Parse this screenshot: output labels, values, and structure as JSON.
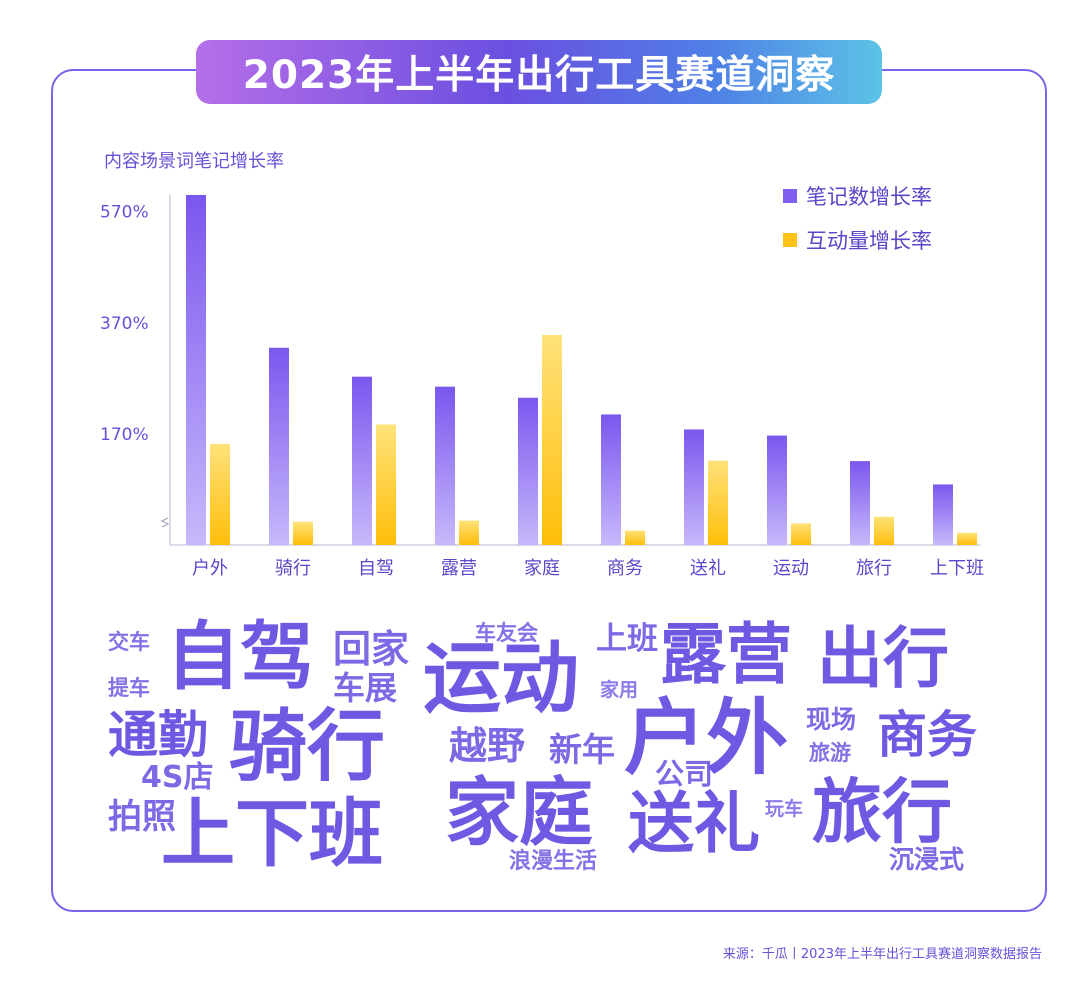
{
  "title": "2023年上半年出行工具赛道洞察",
  "source": "来源：千瓜丨2023年上半年出行工具赛道洞察数据报告",
  "colors": {
    "accent": "#7158e2",
    "bar_purple": "#7f5ff0",
    "bar_yellow": "#ffc21a"
  },
  "chart_data": {
    "type": "bar",
    "title": "2023年上半年出行工具赛道洞察",
    "ylabel": "内容场景词笔记增长率",
    "xlabel": "",
    "categories": [
      "户外",
      "骑行",
      "自驾",
      "露营",
      "家庭",
      "商务",
      "送礼",
      "运动",
      "旅行",
      "上下班"
    ],
    "y_ticks": [
      170,
      370,
      570
    ],
    "y_tick_labels": [
      "170%",
      "370%",
      "570%"
    ],
    "ylim": [
      -30,
      600
    ],
    "axis_break": true,
    "legend_position": "top-right",
    "series": [
      {
        "name": "笔记数增长率",
        "values": [
          600,
          325,
          273,
          255,
          235,
          205,
          178,
          167,
          121,
          79
        ]
      },
      {
        "name": "互动量增长率",
        "values": [
          152,
          12,
          187,
          14,
          348,
          -4,
          122,
          9,
          21,
          -8
        ]
      }
    ]
  },
  "word_cloud": {
    "words": [
      "交车",
      "自驾",
      "回家",
      "车友会",
      "上班",
      "露营",
      "出行",
      "提车",
      "车展",
      "运动",
      "家用",
      "通勤",
      "骑行",
      "越野",
      "新年",
      "户外",
      "现场",
      "商务",
      "4S店",
      "旅游",
      "公司",
      "拍照",
      "上下班",
      "家庭",
      "送礼",
      "玩车",
      "旅行",
      "浪漫生活",
      "沉浸式"
    ]
  }
}
